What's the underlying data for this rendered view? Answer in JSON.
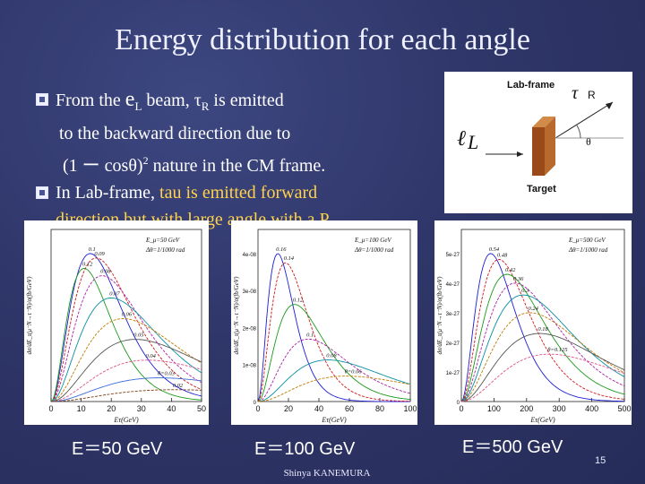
{
  "slide": {
    "title": "Energy distribution for each angle",
    "bullet1": {
      "l1_a": "From the ",
      "l1_e": "e",
      "l1_esub": "L",
      "l1_b": " beam, ",
      "l1_tau": "τ",
      "l1_tausub": "R",
      "l1_c": " is emitted",
      "l2": "to the backward direction due to",
      "l3_a": "(1 ー cosθ)",
      "l3_sup": "2",
      "l3_b": " nature in the CM frame."
    },
    "bullet2": {
      "l1_a": "In Lab-frame, ",
      "l1_hl": "tau is emitted forward",
      "l2_hl": "direction but with large angle with a P",
      "l2_sub": "T",
      "l2_end": "."
    },
    "inset": {
      "title": "Lab-frame",
      "tau": "τ",
      "tau_sub": "R",
      "beam": "ℓ",
      "beam_sub": "L",
      "theta": "θ",
      "target": "Target"
    },
    "captions": [
      "E＝50 GeV",
      "E＝100 GeV",
      "E＝500 GeV"
    ],
    "author": "Shinya KANEMURA",
    "page": "15"
  },
  "colors": {
    "bg": "#2f3669",
    "highlight": "#ffd24a",
    "target_front": "#a0521e",
    "target_side": "#d28a48"
  },
  "chart_data": [
    {
      "type": "line",
      "xlabel": "Eτ(GeV)",
      "ylabel": "dσ/dE_τ(μ⁻N→τ⁻N)/σ(fb/GeV)",
      "xlim": [
        0,
        50
      ],
      "xticks": [
        "0",
        "10",
        "20",
        "30",
        "40",
        "50"
      ],
      "legend": [
        "E_μ=50 GeV",
        "Δθ=1/1000 rad"
      ],
      "series": [
        {
          "name": "0.1",
          "peak_x": 13,
          "peak_y": 1.0
        },
        {
          "name": "0.09",
          "peak_x": 15,
          "peak_y": 0.97
        },
        {
          "name": "0.12",
          "peak_x": 11,
          "peak_y": 0.9
        },
        {
          "name": "0.08",
          "peak_x": 17,
          "peak_y": 0.85
        },
        {
          "name": "0.07",
          "peak_x": 20,
          "peak_y": 0.7
        },
        {
          "name": "0.06",
          "peak_x": 24,
          "peak_y": 0.56
        },
        {
          "name": "0.05",
          "peak_x": 28,
          "peak_y": 0.42
        },
        {
          "name": "0.04",
          "peak_x": 32,
          "peak_y": 0.28
        },
        {
          "name": "θ=0.03",
          "peak_x": 36,
          "peak_y": 0.16
        },
        {
          "name": "0.02",
          "peak_x": 41,
          "peak_y": 0.08
        }
      ]
    },
    {
      "type": "line",
      "xlabel": "Eτ(GeV)",
      "ylabel": "dσ/dE_τ(μ⁻N→τ⁻N)/σ(fb/GeV)",
      "xlim": [
        0,
        100
      ],
      "xticks": [
        "0",
        "20",
        "40",
        "60",
        "80",
        "100"
      ],
      "yticks": [
        "0",
        "1e-08",
        "2e-08",
        "3e-08",
        "4e-08"
      ],
      "legend": [
        "E_μ=100 GeV",
        "Δθ=1/1000 rad"
      ],
      "series": [
        {
          "name": "0.16",
          "peak_x": 13,
          "peak_y": 3.2e-08
        },
        {
          "name": "0.14",
          "peak_x": 18,
          "peak_y": 3e-08
        },
        {
          "name": "0.12",
          "peak_x": 24,
          "peak_y": 2.1e-08
        },
        {
          "name": "0.1",
          "peak_x": 33,
          "peak_y": 1.35e-08
        },
        {
          "name": "0.08",
          "peak_x": 46,
          "peak_y": 9e-09
        },
        {
          "name": "θ=0.06",
          "peak_x": 58,
          "peak_y": 5.5e-09
        }
      ]
    },
    {
      "type": "line",
      "xlabel": "Eτ(GeV)",
      "ylabel": "dσ/dE_τ(μ⁻N→τ⁻N)/σ(fb/GeV)",
      "xlim": [
        0,
        500
      ],
      "xticks": [
        "0",
        "100",
        "200",
        "300",
        "400",
        "500"
      ],
      "yticks": [
        "0",
        "1e-27",
        "2e-27",
        "3e-27",
        "4e-27",
        "5e-27"
      ],
      "legend": [
        "E_μ=500 GeV",
        "Δθ=1/1000 rad"
      ],
      "series": [
        {
          "name": "0.54",
          "peak_x": 90,
          "peak_y": 5e-27
        },
        {
          "name": "0.48",
          "peak_x": 115,
          "peak_y": 4.8e-27
        },
        {
          "name": "0.42",
          "peak_x": 140,
          "peak_y": 4.3e-27
        },
        {
          "name": "0.36",
          "peak_x": 165,
          "peak_y": 4e-27
        },
        {
          "name": "0.3",
          "peak_x": 190,
          "peak_y": 3.6e-27
        },
        {
          "name": "0.24",
          "peak_x": 210,
          "peak_y": 3e-27
        },
        {
          "name": "0.18",
          "peak_x": 240,
          "peak_y": 2.3e-27
        },
        {
          "name": "θ=0.125",
          "peak_x": 270,
          "peak_y": 1.6e-27
        }
      ]
    }
  ]
}
